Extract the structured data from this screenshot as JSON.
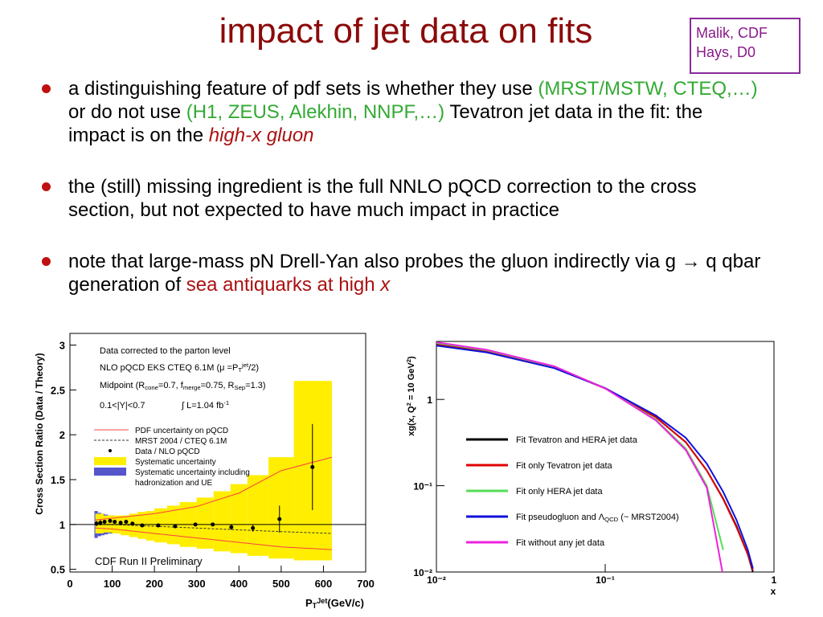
{
  "title": "impact of jet data on fits",
  "note": [
    "Malik, CDF",
    "Hays, D0"
  ],
  "bullets": [
    [
      {
        "text": "a distinguishing feature of pdf sets is whether they use "
      },
      {
        "text": "(MRST/MSTW, CTEQ,…)",
        "color": "#33aa33"
      },
      {
        "text": " or do not use "
      },
      {
        "text": "(H1, ZEUS, Alekhin, NNPF,…)",
        "color": "#33aa33"
      },
      {
        "text": " Tevatron jet data in the fit: the impact is on the "
      },
      {
        "text": "high-x gluon",
        "color": "#aa1111",
        "italic": true
      }
    ],
    [
      {
        "text": "the (still) missing ingredient is the full NNLO pQCD correction to the cross section, but not expected to have much impact in practice"
      }
    ],
    [
      {
        "text": "note that large-mass pN Drell-Yan also probes the gluon indirectly via g → q qbar generation of "
      },
      {
        "text": "sea antiquarks at high ",
        "color": "#aa1111"
      },
      {
        "text": "x",
        "color": "#aa1111",
        "italic": true
      }
    ]
  ],
  "chart_data": [
    {
      "type": "scatter",
      "x_label": [
        {
          "text": "P"
        },
        {
          "text": "T",
          "sub": true
        },
        {
          "text": "Jet",
          "sup": true
        },
        {
          "text": "(GeV/c)"
        }
      ],
      "y_label": "Cross Section Ratio (Data / Theory)",
      "xlim": [
        0,
        700
      ],
      "xticks": [
        0,
        100,
        200,
        300,
        400,
        500,
        600,
        700
      ],
      "ylim": [
        0.47,
        3.13
      ],
      "yticks": [
        0.5,
        1,
        1.5,
        2,
        2.5,
        3
      ],
      "reference_line": 1,
      "annotations": [
        [
          {
            "text": "Data corrected to the parton level"
          }
        ],
        [
          {
            "text": "NLO pQCD EKS CTEQ 6.1M  (μ =P"
          },
          {
            "text": "T",
            "sub": true
          },
          {
            "text": "jet",
            "sup": true
          },
          {
            "text": "/2)"
          }
        ],
        [
          {
            "text": "Midpoint  (R"
          },
          {
            "text": "cone",
            "sub": true
          },
          {
            "text": "=0.7, f"
          },
          {
            "text": "merge",
            "sub": true
          },
          {
            "text": "=0.75, R"
          },
          {
            "text": "Sep",
            "sub": true
          },
          {
            "text": "=1.3)"
          }
        ],
        [
          {
            "text": "0.1<|Y|<0.7"
          }
        ],
        [
          {
            "text": "∫"
          },
          {
            "text": " L=1.04 fb"
          },
          {
            "text": "-1",
            "sup": true
          }
        ]
      ],
      "run_label": "CDF Run II Preliminary",
      "series": [
        {
          "name": [
            "Systematic uncertainty including",
            "hadronization and UE"
          ],
          "color": "#5555cc",
          "bins": [
            58,
            66,
            74,
            82,
            90,
            98,
            106
          ],
          "lower": [
            0.85,
            0.87,
            0.88,
            0.89,
            0.9,
            0.9
          ],
          "upper": [
            1.15,
            1.13,
            1.12,
            1.11,
            1.1,
            1.1
          ]
        },
        {
          "name": [
            "Systematic uncertainty"
          ],
          "color": "#ffee00",
          "bins": [
            60,
            80,
            100,
            120,
            140,
            160,
            180,
            200,
            230,
            260,
            300,
            340,
            380,
            420,
            470,
            530,
            620
          ],
          "lower": [
            0.9,
            0.91,
            0.9,
            0.88,
            0.86,
            0.84,
            0.82,
            0.8,
            0.78,
            0.75,
            0.73,
            0.7,
            0.68,
            0.65,
            0.62,
            0.6
          ],
          "upper": [
            1.12,
            1.1,
            1.1,
            1.1,
            1.12,
            1.14,
            1.15,
            1.18,
            1.21,
            1.25,
            1.3,
            1.37,
            1.45,
            1.55,
            1.75,
            2.6
          ]
        },
        {
          "name": [
            "PDF uncertainty on pQCD"
          ],
          "color": "#ff4040",
          "x": [
            60,
            100,
            200,
            300,
            400,
            500,
            620
          ],
          "lower": [
            0.96,
            0.95,
            0.9,
            0.85,
            0.8,
            0.75,
            0.72
          ],
          "upper": [
            1.05,
            1.07,
            1.12,
            1.2,
            1.35,
            1.6,
            1.75
          ]
        },
        {
          "name": [
            "MRST 2004 / CTEQ 6.1M"
          ],
          "color": "#333333",
          "dash": true,
          "x": [
            60,
            100,
            200,
            300,
            400,
            500,
            620
          ],
          "values": [
            1.0,
            1.0,
            0.98,
            0.96,
            0.94,
            0.92,
            0.9
          ]
        },
        {
          "name": [
            "Data / NLO pQCD"
          ],
          "color": "#000000",
          "x": [
            63,
            72,
            82,
            95,
            106,
            120,
            133,
            148,
            171,
            209,
            249,
            297,
            338,
            382,
            433,
            496,
            574
          ],
          "values": [
            1.01,
            1.02,
            1.03,
            1.04,
            1.03,
            1.02,
            1.03,
            1.01,
            0.99,
            0.99,
            0.98,
            1.0,
            1.0,
            0.97,
            0.96,
            1.06,
            1.64
          ],
          "errors": [
            0.03,
            0.03,
            0.02,
            0.02,
            0.02,
            0.02,
            0.02,
            0.02,
            0.02,
            0.02,
            0.02,
            0.02,
            0.02,
            0.03,
            0.04,
            0.15,
            0.48
          ]
        }
      ]
    },
    {
      "type": "line",
      "log_x": true,
      "log_y": true,
      "x_label": "x",
      "y_label": [
        {
          "text": "xg(x, Q"
        },
        {
          "text": "2",
          "sup": true
        },
        {
          "text": " = 10 GeV"
        },
        {
          "text": "2",
          "sup": true
        },
        {
          "text": ")"
        }
      ],
      "xlim": [
        0.01,
        1
      ],
      "xticks": [
        {
          "value": 0.01,
          "label": "10⁻²"
        },
        {
          "value": 0.1,
          "label": "10⁻¹"
        },
        1
      ],
      "ylim": [
        0.01,
        4.7
      ],
      "yticks": [
        {
          "value": 0.01,
          "label": "10⁻²"
        },
        {
          "value": 0.1,
          "label": "10⁻¹"
        },
        1
      ],
      "x": [
        0.01,
        0.02,
        0.05,
        0.1,
        0.2,
        0.3,
        0.4,
        0.5,
        0.6,
        0.7,
        0.75
      ],
      "series": [
        {
          "name": [
            {
              "text": "Fit Tevatron and HERA jet data"
            }
          ],
          "color": "#000000",
          "values": [
            4.4,
            3.6,
            2.36,
            1.35,
            0.62,
            0.32,
            0.15,
            0.071,
            0.034,
            0.016,
            0.01
          ]
        },
        {
          "name": [
            {
              "text": "Fit only Tevatron jet data"
            }
          ],
          "color": "#e00000",
          "values": [
            4.3,
            3.55,
            2.35,
            1.34,
            0.62,
            0.32,
            0.15,
            0.07,
            0.033,
            0.016,
            0.0105
          ]
        },
        {
          "name": [
            {
              "text": "Fit only HERA jet data"
            }
          ],
          "color": "#55dd55",
          "values": [
            4.5,
            3.7,
            2.4,
            1.35,
            0.58,
            0.27,
            0.1,
            0.018,
            null,
            null,
            null
          ]
        },
        {
          "name": [
            {
              "text": "Fit pseudogluon and Λ"
            },
            {
              "text": "QCD",
              "sub": true
            },
            {
              "text": " (~ MRST2004)"
            }
          ],
          "color": "#1010dd",
          "values": [
            4.2,
            3.5,
            2.3,
            1.35,
            0.65,
            0.36,
            0.18,
            0.085,
            0.04,
            0.018,
            0.011
          ]
        },
        {
          "name": [
            {
              "text": "Fit without any jet data"
            }
          ],
          "color": "#ee22dd",
          "values": [
            4.6,
            3.75,
            2.42,
            1.34,
            0.57,
            0.26,
            0.095,
            0.009,
            null,
            null,
            null
          ]
        }
      ]
    }
  ]
}
